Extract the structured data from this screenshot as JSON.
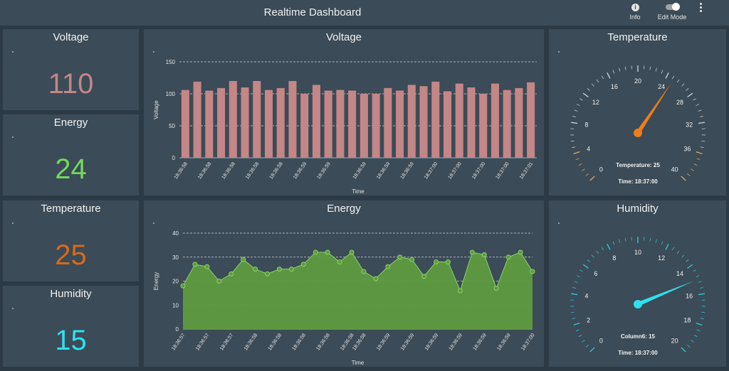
{
  "app": {
    "title": "Realtime Dashboard",
    "info_label": "Info",
    "edit_mode_label": "Edit Mode"
  },
  "cards": {
    "voltage": {
      "title": "Voltage",
      "value": "110"
    },
    "energy": {
      "title": "Energy",
      "value": "24"
    },
    "temperature": {
      "title": "Temperature",
      "value": "25"
    },
    "humidity": {
      "title": "Humidity",
      "value": "15"
    }
  },
  "colors": {
    "voltage": "#c48686",
    "energy": "#74d95b",
    "temperature": "#d56a1c",
    "humidity": "#2fe1ee",
    "bar": "#c48686",
    "area": "#5e9a3f",
    "area_point": "#8dd26b",
    "temp_needle": "#ef7d1a",
    "hum_needle": "#2fe1ee"
  },
  "chart_data": [
    {
      "type": "bar",
      "title": "Voltage",
      "xlabel": "Time",
      "ylabel": "Voltage",
      "ylim": [
        0,
        150
      ],
      "yticks": [
        0,
        50,
        100,
        150
      ],
      "grid": true,
      "tick_labels": [
        "18:36:58",
        "18:36:58",
        "18:36:58",
        "18:36:58",
        "18:36:58",
        "18:36:59",
        "18:36:59",
        "18:36:59",
        "18:36:59",
        "18:36:59",
        "18:37:00",
        "18:37:00",
        "18:37:00",
        "18:37:00",
        "18:37:01"
      ],
      "values": [
        106,
        119,
        105,
        109,
        120,
        110,
        120,
        106,
        109,
        120,
        100,
        114,
        105,
        106,
        105,
        100,
        100,
        109,
        105,
        114,
        112,
        119,
        104,
        116,
        110,
        100,
        116,
        106,
        109,
        118
      ]
    },
    {
      "type": "area",
      "title": "Energy",
      "xlabel": "Time",
      "ylabel": "Energy",
      "ylim": [
        0,
        40
      ],
      "yticks": [
        0,
        10,
        20,
        30,
        40
      ],
      "grid": true,
      "tick_labels": [
        "18:36:57",
        "18:36:57",
        "18:36:57",
        "18:36:58",
        "18:36:58",
        "18:36:58",
        "18:36:58",
        "18:36:58",
        "18:36:58",
        "18:36:59",
        "18:36:59",
        "18:36:59",
        "18:36:59",
        "18:36:59",
        "18:36:59",
        "18:37:00"
      ],
      "values": [
        18,
        27,
        26,
        20,
        23,
        29,
        25,
        23,
        25,
        25,
        27,
        32,
        32,
        28,
        32,
        24,
        21,
        26,
        30,
        29,
        22,
        28,
        28,
        16,
        32,
        31,
        17,
        30,
        32,
        24
      ]
    },
    {
      "type": "gauge",
      "title": "Temperature",
      "min": 0,
      "max": 40,
      "ticks": [
        0,
        4,
        8,
        12,
        16,
        20,
        24,
        28,
        32,
        36,
        40
      ],
      "value": 25,
      "value_label": "Temperature: 25",
      "time_label": "Time: 18:37:00"
    },
    {
      "type": "gauge",
      "title": "Humidity",
      "min": 0,
      "max": 20,
      "ticks": [
        0,
        2,
        4,
        6,
        8,
        10,
        12,
        14,
        16,
        18,
        20
      ],
      "value": 15,
      "value_label": "Column6: 15",
      "time_label": "Time: 18:37:00"
    }
  ]
}
